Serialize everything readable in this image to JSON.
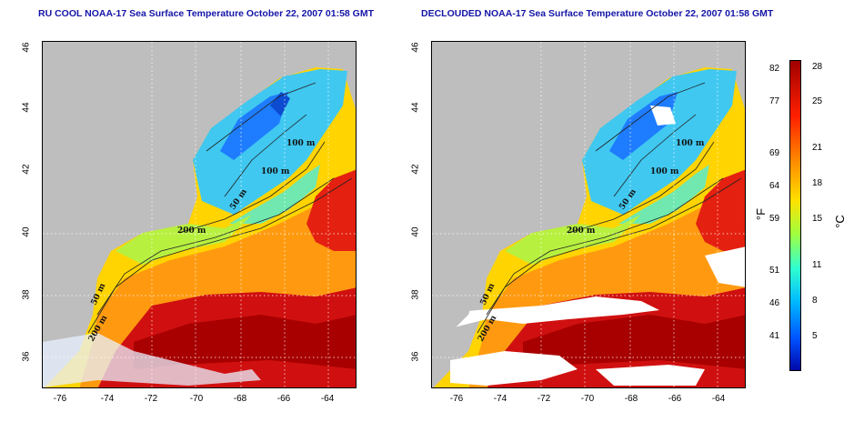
{
  "titles": {
    "left": "RU COOL NOAA-17 Sea Surface Temperature October 22, 2007 01:58 GMT",
    "right": "DECLOUDED NOAA-17 Sea Surface Temperature October 22, 2007 01:58 GMT"
  },
  "axes": {
    "x_ticks": [
      "-76",
      "-74",
      "-72",
      "-70",
      "-68",
      "-66",
      "-64"
    ],
    "y_ticks": [
      "46",
      "44",
      "42",
      "40",
      "38",
      "36"
    ]
  },
  "contour_labels": [
    "100 m",
    "100 m",
    "50 m",
    "200 m",
    "50 m",
    "200 m"
  ],
  "colorbar": {
    "fahrenheit_unit": "°F",
    "celsius_unit": "°C",
    "fahrenheit_ticks": [
      "82",
      "77",
      "69",
      "64",
      "59",
      "51",
      "46",
      "41"
    ],
    "celsius_ticks": [
      "28",
      "25",
      "21",
      "18",
      "15",
      "11",
      "8",
      "5"
    ]
  },
  "colors": {
    "title": "#1414a8",
    "land": "#bebebe",
    "warm": "#d01010",
    "cold": "#1e7cff"
  }
}
